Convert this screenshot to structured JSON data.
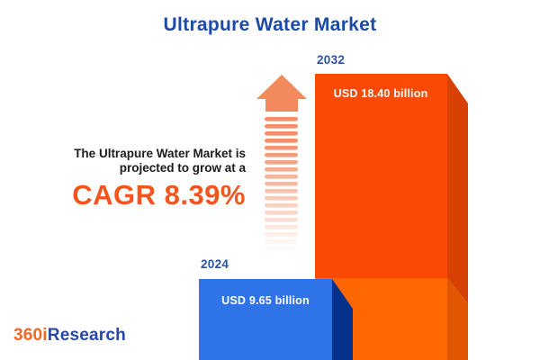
{
  "title": "Ultrapure Water Market",
  "annotation": {
    "line1": "The Ultrapure Water Market is",
    "line2": "projected to grow at a",
    "cagr": "CAGR 8.39%"
  },
  "bars": {
    "b2024": {
      "year": "2024",
      "value_label": "USD 9.65 billion"
    },
    "b2032": {
      "year": "2032",
      "value_label": "USD 18.40 billion"
    }
  },
  "logo": {
    "prefix": "360i",
    "suffix": "Research"
  },
  "colors": {
    "title_blue": "#1c4aa6",
    "year_label_blue": "#2b51a8",
    "annotation_dark": "#1b1b1b",
    "cagr_orange": "#f4551c",
    "value_text_white": "#ffffff",
    "bar2032_front_top": "#fa4a05",
    "bar2032_side_top": "#d84104",
    "bar2032_front_bottom": "#ff6701",
    "bar2032_side_bottom": "#e15602",
    "bar2024_front": "#2e73e7",
    "bar2024_side": "#05308c",
    "arrow_salmon": "#f28a5e",
    "logo_orange": "#f26722",
    "logo_blue": "#2746a8"
  },
  "chart_data": {
    "type": "bar",
    "categories": [
      "2024",
      "2032"
    ],
    "values": [
      9.65,
      18.4
    ],
    "unit": "USD billion",
    "value_labels": [
      "USD 9.65 billion",
      "USD 18.40 billion"
    ],
    "title": "Ultrapure Water Market",
    "xlabel": "",
    "ylabel": "",
    "cagr_percent": 8.39,
    "annotation": "The Ultrapure Water Market is projected to grow at a CAGR 8.39%",
    "legend": "none",
    "grid": false,
    "style": "3d-extruded bars, growth arrow between bars, value labels inside bars, year labels above bars"
  }
}
